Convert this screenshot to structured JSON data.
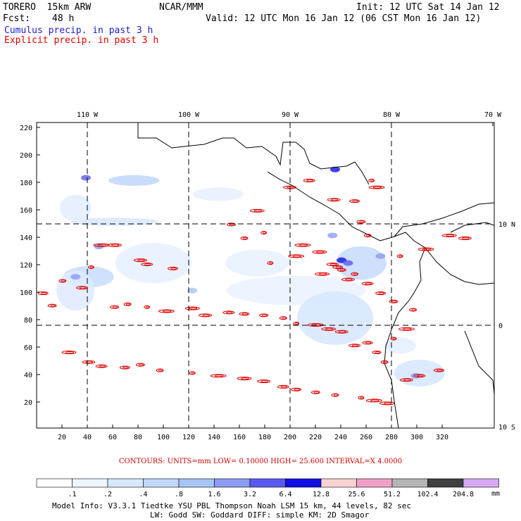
{
  "header": {
    "model": "TORERO  15km ARW",
    "org": "NCAR/MMM",
    "init": "Init: 12 UTC Sat 14 Jan 12",
    "fcst_label": "Fcst:",
    "fcst_value": "48 h",
    "valid": "Valid: 12 UTC Mon 16 Jan 12 (06 CST Mon 16 Jan 12)",
    "cumulus": "Cumulus precip. in past 3 h",
    "explicit": "Explicit precip. in past 3 h"
  },
  "colors": {
    "cumulus": "#1e1ecc",
    "explicit": "#dd0000",
    "contour": "#e00000"
  },
  "map": {
    "lon_labels": [
      "110 W",
      "100 W",
      "90 W",
      "80 W",
      "70 W"
    ],
    "lat_labels": [
      "10 N",
      "0",
      "10 S"
    ],
    "x_ticks": [
      "20",
      "40",
      "60",
      "80",
      "100",
      "120",
      "140",
      "160",
      "180",
      "200",
      "220",
      "240",
      "260",
      "280",
      "300",
      "320"
    ],
    "y_ticks": [
      "20",
      "40",
      "60",
      "80",
      "100",
      "120",
      "140",
      "160",
      "180",
      "200",
      "220"
    ]
  },
  "contours_line": "CONTOURS:  UNITS=mm  LOW= 0.10000      HIGH=  25.600      INTERVAL=X  4.0000",
  "legend": {
    "units": "mm",
    "labels": [
      ".1",
      ".2",
      ".4",
      ".8",
      "1.6",
      "3.2",
      "6.4",
      "12.8",
      "25.6",
      "51.2",
      "102.4",
      "204.8"
    ],
    "colors": [
      "#ffffff",
      "#eef5ff",
      "#d8e8ff",
      "#c0d8fb",
      "#a8c4f2",
      "#8c9cf0",
      "#5a5af0",
      "#1010e6",
      "#fbd2d2",
      "#f0a0c8",
      "#b4b4b4",
      "#404040",
      "#d6a8f2"
    ]
  },
  "footer": {
    "line1": "Model Info: V3.3.1    Tiedtke YSU PBL   Thompson     Noah LSM  15 km,   44 levels,   82 sec",
    "line2": "LW: Godd SW: Goddard DIFF: simple KM: 2D Smagor"
  }
}
